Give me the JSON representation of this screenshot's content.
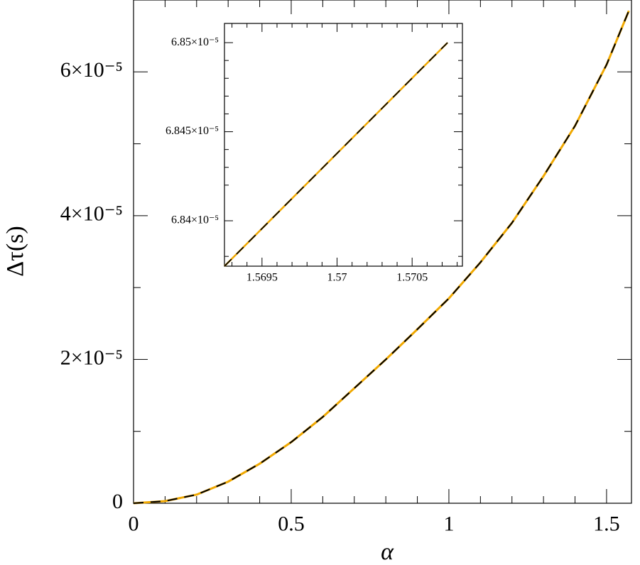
{
  "chart_data": [
    {
      "type": "line",
      "xlabel": "α",
      "ylabel": "Δτ(s)",
      "x": [
        0,
        0.1,
        0.2,
        0.3,
        0.4,
        0.5,
        0.6,
        0.7,
        0.8,
        0.9,
        1.0,
        1.1,
        1.2,
        1.3,
        1.4,
        1.5,
        1.5707
      ],
      "series": [
        {
          "color": "#f0a800",
          "dashed": false,
          "values": [
            0,
            3e-07,
            1.2e-06,
            3e-06,
            5.5e-06,
            8.5e-06,
            1.2e-05,
            1.6e-05,
            2e-05,
            2.42e-05,
            2.85e-05,
            3.35e-05,
            3.9e-05,
            4.55e-05,
            5.25e-05,
            6.1e-05,
            6.85e-05
          ]
        },
        {
          "color": "#000000",
          "dashed": true,
          "values": [
            0,
            3e-07,
            1.2e-06,
            3e-06,
            5.5e-06,
            8.5e-06,
            1.2e-05,
            1.6e-05,
            2e-05,
            2.42e-05,
            2.85e-05,
            3.35e-05,
            3.9e-05,
            4.55e-05,
            5.25e-05,
            6.1e-05,
            6.85e-05
          ]
        }
      ],
      "xlim": [
        0,
        1.579
      ],
      "ylim": [
        0,
        7e-05
      ],
      "xticks": [
        0,
        0.5,
        1,
        1.5
      ],
      "yticks": [
        0,
        {
          "value": 2e-05,
          "label": "2×10⁻⁵"
        },
        {
          "value": 4e-05,
          "label": "4×10⁻⁵"
        },
        {
          "value": 6e-05,
          "label": "6×10⁻⁵"
        }
      ],
      "xminorticks": [
        0.1,
        0.2,
        0.3,
        0.4,
        0.6,
        0.7,
        0.8,
        0.9,
        1.1,
        1.2,
        1.3,
        1.4
      ],
      "yminorticks": [
        1e-05,
        3e-05,
        5e-05
      ]
    },
    {
      "type": "line",
      "x": [
        1.56925,
        1.570736
      ],
      "series": [
        {
          "color": "#f0a800",
          "dashed": false,
          "values": [
            6.83745e-05,
            6.85e-05
          ]
        },
        {
          "color": "#000000",
          "dashed": true,
          "values": [
            6.83745e-05,
            6.85e-05
          ]
        }
      ],
      "xlim": [
        1.56925,
        1.570835
      ],
      "ylim": [
        6.83745e-05,
        6.85108e-05
      ],
      "xticks": [
        1.5695,
        1.57,
        1.5705
      ],
      "yticks": [
        {
          "value": 6.84e-05,
          "label": "6.84×10⁻⁵"
        },
        {
          "value": 6.845e-05,
          "label": "6.845×10⁻⁵"
        },
        {
          "value": 6.85e-05,
          "label": "6.85×10⁻⁵"
        }
      ],
      "xminorticks": [
        1.5693,
        1.5694,
        1.5696,
        1.5697,
        1.5698,
        1.5699,
        1.5701,
        1.5702,
        1.5703,
        1.5704,
        1.5706,
        1.5707,
        1.5708
      ],
      "yminorticks": [
        6.838e-05,
        6.842e-05,
        6.843e-05,
        6.844e-05,
        6.846e-05,
        6.847e-05,
        6.848e-05,
        6.849e-05
      ]
    }
  ]
}
